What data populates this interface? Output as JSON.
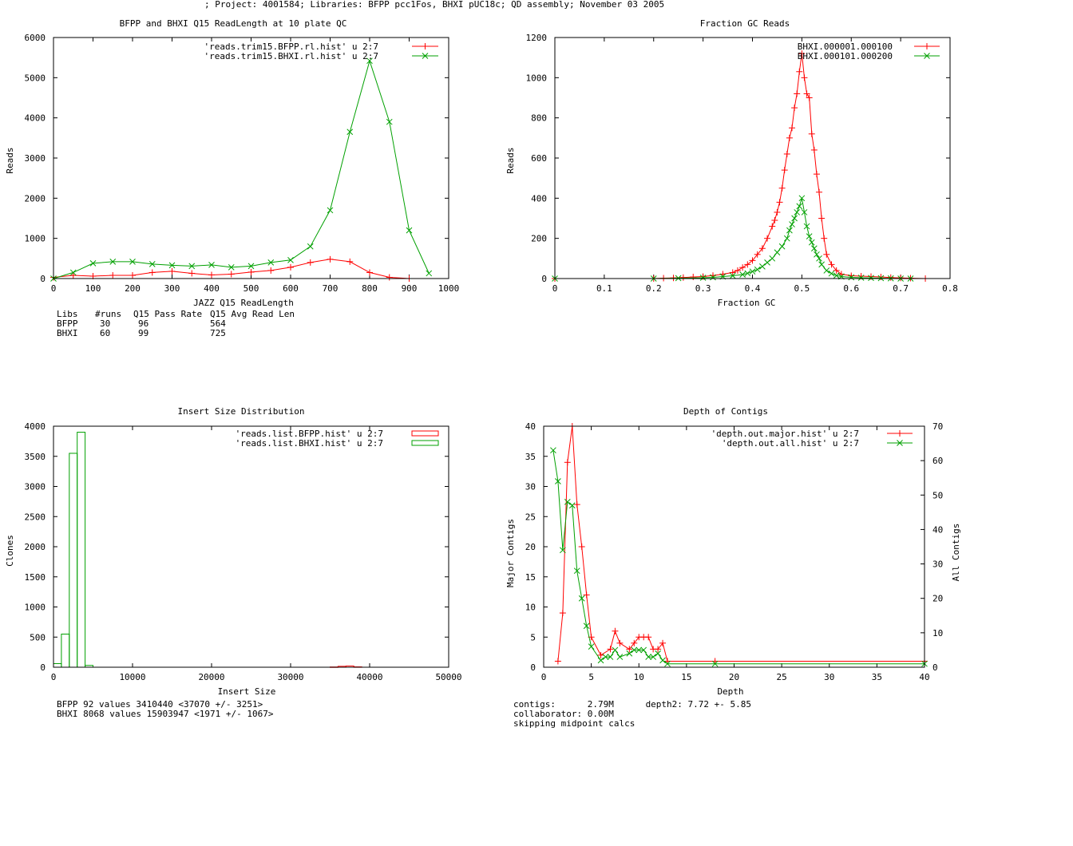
{
  "header": {
    "title": "; Project: 4001584; Libraries: BFPP pcc1Fos, BHXI pUC18c; QD assembly; November 03 2005"
  },
  "colors": {
    "red": "#ff0000",
    "green": "#00a000",
    "axis": "#000000"
  },
  "chart_data": [
    {
      "id": "readlength",
      "type": "line",
      "title": "BFPP and BHXI Q15 ReadLength at 10 plate QC",
      "xlabel": "JAZZ Q15 ReadLength",
      "ylabel": "Reads",
      "xlim": [
        0,
        1000
      ],
      "ylim": [
        0,
        6000
      ],
      "xticks": [
        0,
        100,
        200,
        300,
        400,
        500,
        600,
        700,
        800,
        900,
        1000
      ],
      "xtick_labels": [
        "0",
        "100",
        "200",
        "300",
        "400",
        "500",
        "600",
        "700",
        "800",
        "900",
        "1000"
      ],
      "yticks": [
        0,
        1000,
        2000,
        3000,
        4000,
        5000,
        6000
      ],
      "ytick_labels": [
        "0",
        "1000",
        "2000",
        "3000",
        "4000",
        "5000",
        "6000"
      ],
      "series": [
        {
          "name": "'reads.trim15.BFPP.rl.hist' u 2:7",
          "color": "#ff0000",
          "marker": "plus",
          "x": [
            0,
            50,
            100,
            150,
            200,
            250,
            300,
            350,
            400,
            450,
            500,
            550,
            600,
            650,
            700,
            750,
            800,
            850,
            900
          ],
          "y": [
            30,
            80,
            60,
            80,
            80,
            150,
            180,
            130,
            90,
            110,
            160,
            200,
            280,
            400,
            480,
            420,
            150,
            30,
            0
          ]
        },
        {
          "name": "'reads.trim15.BHXI.rl.hist' u 2:7",
          "color": "#00a000",
          "marker": "cross",
          "x": [
            0,
            50,
            100,
            150,
            200,
            250,
            300,
            350,
            400,
            450,
            500,
            550,
            600,
            650,
            700,
            750,
            800,
            850,
            900,
            950
          ],
          "y": [
            0,
            150,
            380,
            420,
            420,
            360,
            330,
            310,
            340,
            280,
            310,
            400,
            460,
            800,
            1700,
            3650,
            5420,
            3900,
            1200,
            130
          ]
        }
      ],
      "table": {
        "header": [
          "Libs",
          "#runs",
          "Q15 Pass Rate",
          "Q15 Avg Read Len"
        ],
        "rows": [
          [
            "BFPP",
            "30",
            "96",
            "564"
          ],
          [
            "BHXI",
            "60",
            "99",
            "725"
          ]
        ]
      }
    },
    {
      "id": "gc",
      "type": "line",
      "title": "Fraction GC Reads",
      "xlabel": "Fraction GC",
      "ylabel": "Reads",
      "xlim": [
        0,
        0.8
      ],
      "ylim": [
        0,
        1200
      ],
      "xticks": [
        0,
        0.1,
        0.2,
        0.3,
        0.4,
        0.5,
        0.6,
        0.7,
        0.8
      ],
      "xtick_labels": [
        "0",
        "0.1",
        "0.2",
        "0.3",
        "0.4",
        "0.5",
        "0.6",
        "0.7",
        "0.8"
      ],
      "yticks": [
        0,
        200,
        400,
        600,
        800,
        1000,
        1200
      ],
      "ytick_labels": [
        "0",
        "200",
        "400",
        "600",
        "800",
        "1000",
        "1200"
      ],
      "series": [
        {
          "name": "BHXI.000001.000100",
          "color": "#ff0000",
          "marker": "plus",
          "x": [
            0,
            0.2,
            0.22,
            0.24,
            0.26,
            0.28,
            0.3,
            0.32,
            0.34,
            0.36,
            0.37,
            0.38,
            0.39,
            0.4,
            0.41,
            0.42,
            0.43,
            0.44,
            0.445,
            0.45,
            0.455,
            0.46,
            0.465,
            0.47,
            0.475,
            0.48,
            0.485,
            0.49,
            0.495,
            0.5,
            0.505,
            0.51,
            0.515,
            0.52,
            0.525,
            0.53,
            0.535,
            0.54,
            0.545,
            0.55,
            0.56,
            0.57,
            0.58,
            0.6,
            0.62,
            0.64,
            0.66,
            0.68,
            0.7,
            0.72,
            0.75
          ],
          "y": [
            0,
            0,
            2,
            3,
            5,
            8,
            10,
            15,
            22,
            30,
            40,
            55,
            70,
            90,
            120,
            150,
            200,
            260,
            290,
            330,
            380,
            450,
            540,
            620,
            700,
            750,
            850,
            920,
            1030,
            1120,
            1000,
            920,
            900,
            720,
            640,
            520,
            430,
            300,
            200,
            120,
            70,
            40,
            22,
            14,
            12,
            10,
            8,
            5,
            3,
            2,
            0
          ]
        },
        {
          "name": "BHXI.000101.000200",
          "color": "#00a000",
          "marker": "cross",
          "x": [
            0,
            0.2,
            0.25,
            0.3,
            0.32,
            0.34,
            0.36,
            0.38,
            0.39,
            0.4,
            0.41,
            0.42,
            0.43,
            0.44,
            0.45,
            0.46,
            0.47,
            0.475,
            0.48,
            0.485,
            0.49,
            0.495,
            0.5,
            0.505,
            0.51,
            0.515,
            0.52,
            0.525,
            0.53,
            0.535,
            0.54,
            0.55,
            0.56,
            0.57,
            0.58,
            0.6,
            0.62,
            0.64,
            0.66,
            0.68,
            0.7,
            0.72
          ],
          "y": [
            0,
            0,
            2,
            4,
            6,
            10,
            14,
            20,
            26,
            35,
            45,
            60,
            80,
            100,
            130,
            160,
            200,
            240,
            270,
            300,
            330,
            360,
            400,
            330,
            260,
            210,
            180,
            150,
            120,
            100,
            70,
            40,
            25,
            15,
            10,
            6,
            4,
            3,
            2,
            1,
            0,
            0
          ]
        }
      ]
    },
    {
      "id": "insert",
      "type": "bar",
      "title": "Insert Size Distribution",
      "xlabel": "Insert Size",
      "ylabel": "Clones",
      "xlim": [
        0,
        50000
      ],
      "ylim": [
        0,
        4000
      ],
      "xticks": [
        0,
        10000,
        20000,
        30000,
        40000,
        50000
      ],
      "xtick_labels": [
        "0",
        "10000",
        "20000",
        "30000",
        "40000",
        "50000"
      ],
      "yticks": [
        0,
        500,
        1000,
        1500,
        2000,
        2500,
        3000,
        3500,
        4000
      ],
      "ytick_labels": [
        "0",
        "500",
        "1000",
        "1500",
        "2000",
        "2500",
        "3000",
        "3500",
        "4000"
      ],
      "bin_width": 1000,
      "series": [
        {
          "name": "'reads.list.BFPP.hist' u 2:7",
          "color": "#ff0000",
          "x": [
            35000,
            36000,
            37000,
            38000
          ],
          "y": [
            4,
            15,
            20,
            6
          ]
        },
        {
          "name": "'reads.list.BHXI.hist' u 2:7",
          "color": "#00a000",
          "x": [
            0,
            1000,
            2000,
            3000,
            4000
          ],
          "y": [
            60,
            550,
            3550,
            3900,
            30
          ]
        }
      ],
      "notes": [
        "BFPP 92 values 3410440 <37070 +/- 3251>",
        "BHXI 8068 values 15903947 <1971 +/- 1067>"
      ]
    },
    {
      "id": "depth",
      "type": "line",
      "title": "Depth of Contigs",
      "xlabel": "Depth",
      "ylabel": "Major Contigs",
      "y2label": "All Contigs",
      "xlim": [
        0,
        40
      ],
      "ylim": [
        0,
        40
      ],
      "y2lim": [
        0,
        70
      ],
      "xticks": [
        0,
        5,
        10,
        15,
        20,
        25,
        30,
        35,
        40
      ],
      "xtick_labels": [
        "0",
        "5",
        "10",
        "15",
        "20",
        "25",
        "30",
        "35",
        "40"
      ],
      "yticks": [
        0,
        5,
        10,
        15,
        20,
        25,
        30,
        35,
        40
      ],
      "ytick_labels": [
        "0",
        "5",
        "10",
        "15",
        "20",
        "25",
        "30",
        "35",
        "40"
      ],
      "y2ticks": [
        0,
        10,
        20,
        30,
        40,
        50,
        60,
        70
      ],
      "y2tick_labels": [
        "0",
        "10",
        "20",
        "30",
        "40",
        "50",
        "60",
        "70"
      ],
      "series": [
        {
          "name": "'depth.out.major.hist' u 2:7",
          "color": "#ff0000",
          "marker": "plus",
          "axis": "y1",
          "x": [
            1.5,
            2,
            2.5,
            3,
            3.5,
            4,
            4.5,
            5,
            6,
            7,
            7.5,
            8,
            9,
            9.5,
            10,
            10.5,
            11,
            11.5,
            12,
            12.5,
            13,
            18,
            40
          ],
          "y": [
            1,
            9,
            34,
            40,
            27,
            20,
            12,
            5,
            2,
            3,
            6,
            4,
            3,
            4,
            5,
            5,
            5,
            3,
            3,
            4,
            1,
            1,
            1
          ]
        },
        {
          "name": "'depth.out.all.hist' u 2:7",
          "color": "#00a000",
          "marker": "cross",
          "axis": "y2",
          "x": [
            1,
            1.5,
            2,
            2.5,
            3,
            3.5,
            4,
            4.5,
            5,
            6,
            6.5,
            7,
            7.5,
            8,
            9,
            9.5,
            10,
            10.5,
            11,
            11.5,
            12,
            12.5,
            13,
            18,
            40
          ],
          "y": [
            63,
            54,
            34,
            48,
            47,
            28,
            20,
            12,
            6,
            2,
            3,
            3,
            5,
            3,
            4,
            5,
            5,
            5,
            3,
            3,
            4,
            2,
            1,
            1,
            1
          ]
        }
      ],
      "notes": [
        "contigs:      2.79M      depth2: 7.72 +- 5.85",
        "collaborator: 0.00M",
        "skipping midpoint calcs"
      ]
    }
  ]
}
